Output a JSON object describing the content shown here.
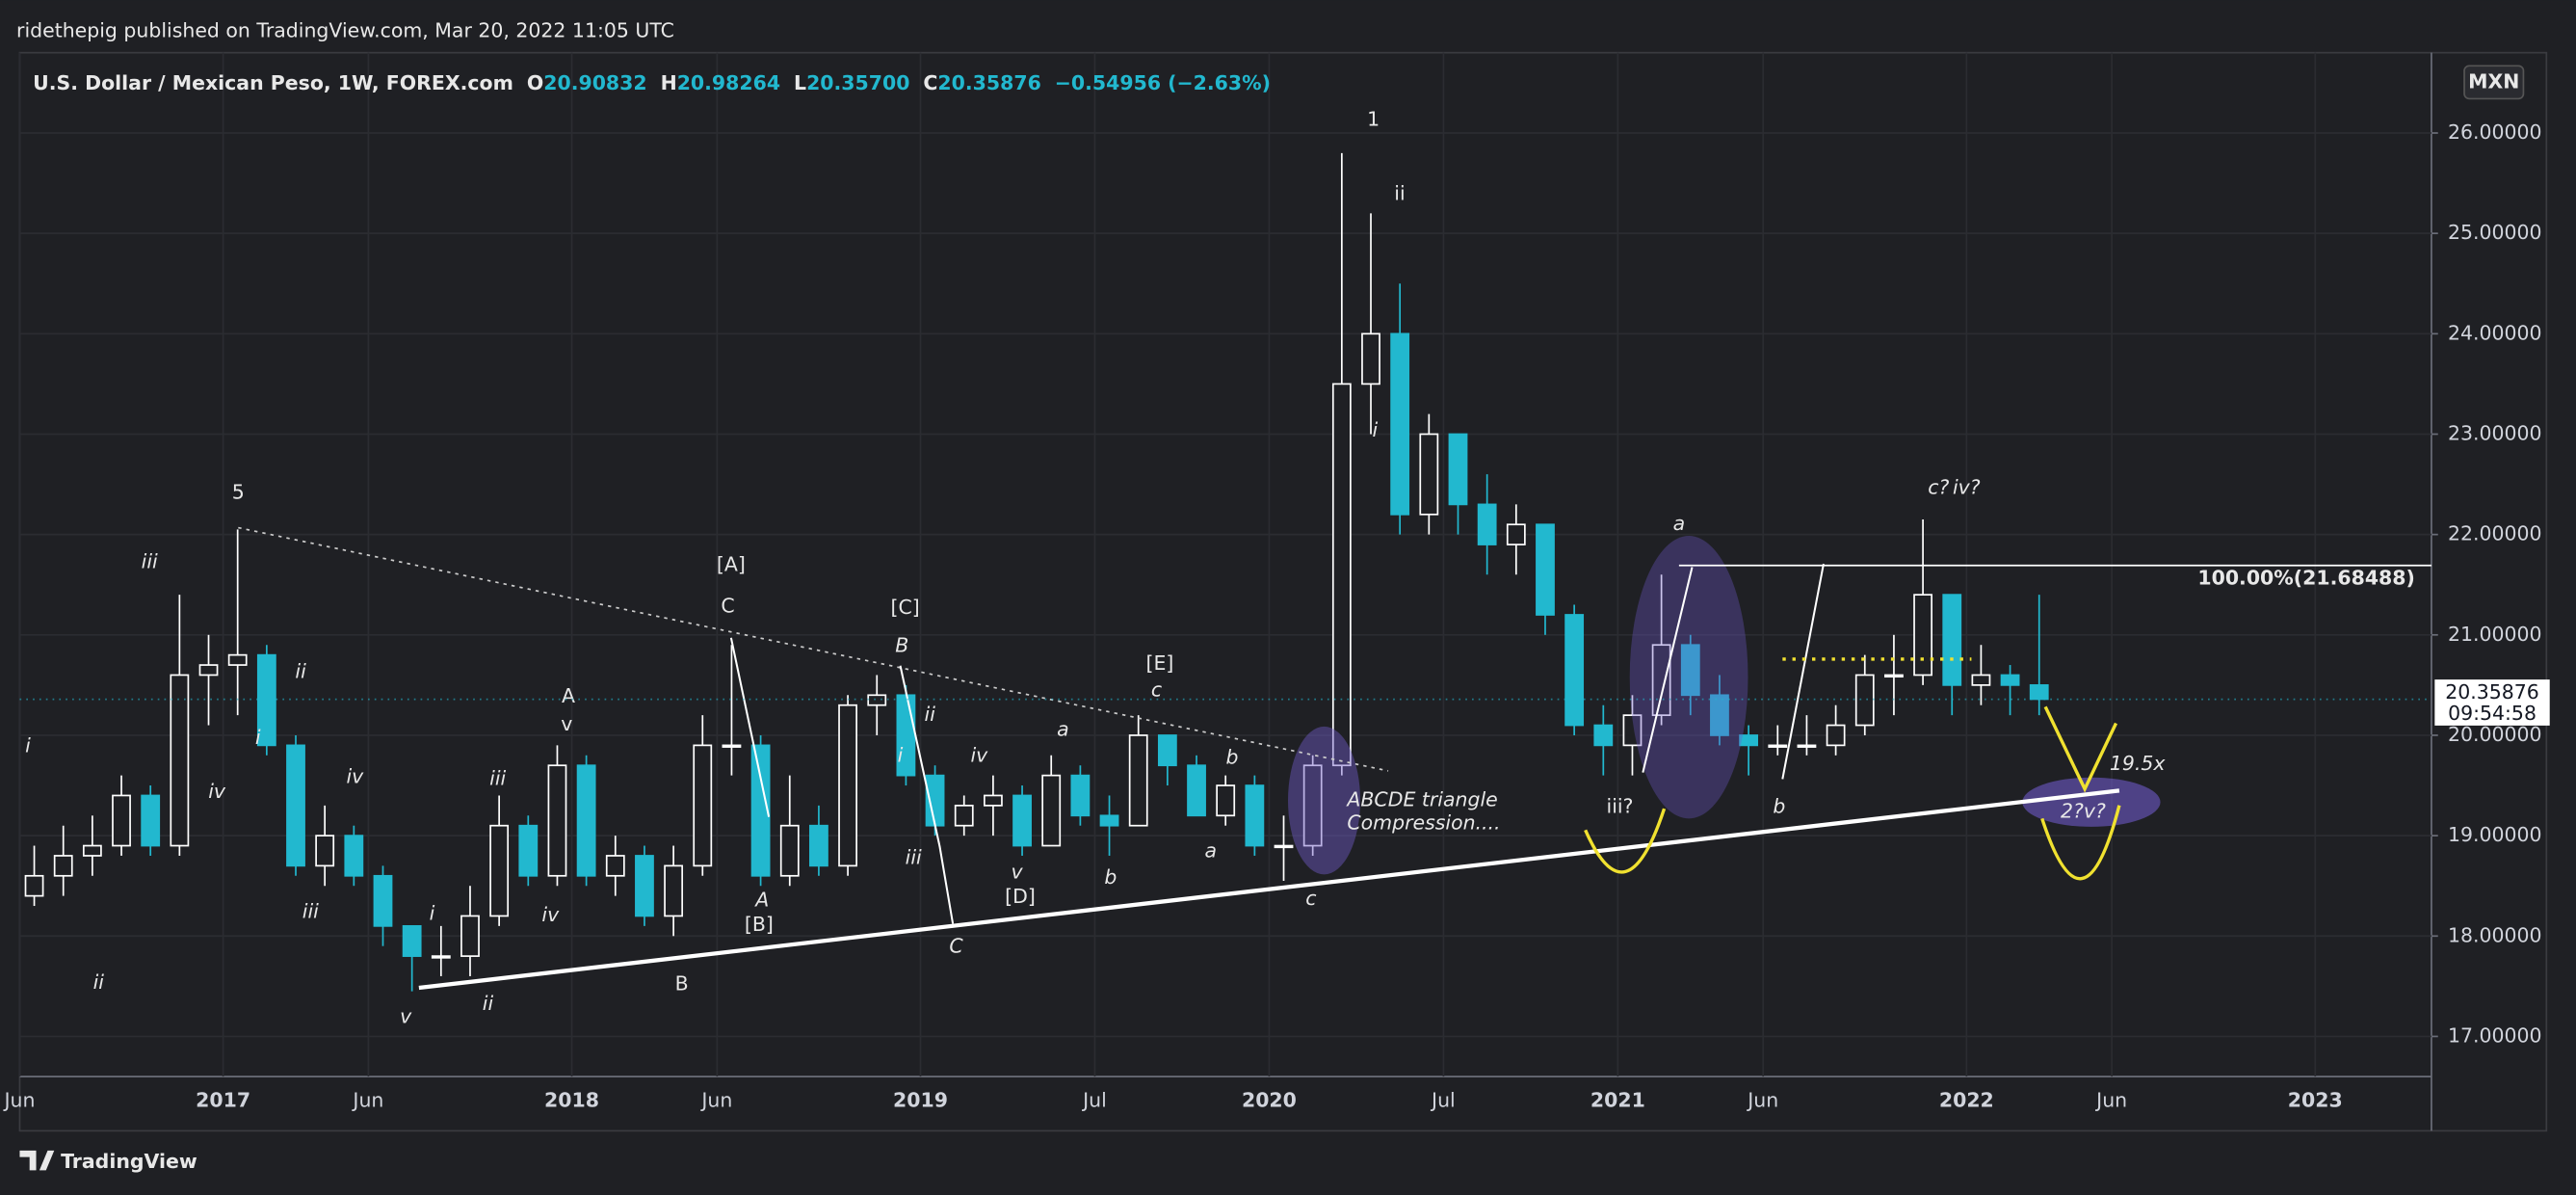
{
  "header": "ridethepig published on TradingView.com, Mar 20, 2022 11:05 UTC",
  "legend": {
    "symbol": "U.S. Dollar / Mexican Peso, 1W, FOREX.com",
    "o_label": "O",
    "o": "20.90832",
    "h_label": "H",
    "h": "20.98264",
    "l_label": "L",
    "l": "20.35700",
    "c_label": "C",
    "c": "20.35876",
    "change": "−0.54956 (−2.63%)"
  },
  "currency": "MXN",
  "footer": "TradingView",
  "chart_data": {
    "type": "candlestick",
    "up_color": "#ffffff",
    "down_color": "#22b8cf",
    "x": [
      "2016-06",
      "2016-07",
      "2016-08",
      "2016-09",
      "2016-10",
      "2016-11",
      "2016-12",
      "2017-01",
      "2017-02",
      "2017-03",
      "2017-04",
      "2017-05",
      "2017-06",
      "2017-07",
      "2017-08",
      "2017-09",
      "2017-10",
      "2017-11",
      "2017-12",
      "2018-01",
      "2018-02",
      "2018-03",
      "2018-04",
      "2018-05",
      "2018-06",
      "2018-07",
      "2018-08",
      "2018-09",
      "2018-10",
      "2018-11",
      "2018-12",
      "2019-01",
      "2019-02",
      "2019-03",
      "2019-04",
      "2019-05",
      "2019-06",
      "2019-07",
      "2019-08",
      "2019-09",
      "2019-10",
      "2019-11",
      "2019-12",
      "2020-01",
      "2020-02",
      "2020-03",
      "2020-04",
      "2020-05",
      "2020-06",
      "2020-07",
      "2020-08",
      "2020-09",
      "2020-10",
      "2020-11",
      "2020-12",
      "2021-01",
      "2021-02",
      "2021-03",
      "2021-04",
      "2021-05",
      "2021-06",
      "2021-07",
      "2021-08",
      "2021-09",
      "2021-10",
      "2021-11",
      "2021-12",
      "2022-01",
      "2022-02",
      "2022-03"
    ],
    "open": [
      18.4,
      18.6,
      18.8,
      18.9,
      19.4,
      18.9,
      20.6,
      20.7,
      20.8,
      19.9,
      18.7,
      19.0,
      18.6,
      18.1,
      17.8,
      17.8,
      18.2,
      19.1,
      18.6,
      19.7,
      18.6,
      18.8,
      18.2,
      18.7,
      19.9,
      19.9,
      18.6,
      19.1,
      18.7,
      20.3,
      20.4,
      19.6,
      19.1,
      19.3,
      19.4,
      18.9,
      19.6,
      19.2,
      19.1,
      20.0,
      19.7,
      19.2,
      19.5,
      18.9,
      18.9,
      19.7,
      23.5,
      24.0,
      22.2,
      23.0,
      22.3,
      21.9,
      22.1,
      21.2,
      20.1,
      19.9,
      20.2,
      20.9,
      20.4,
      20.0,
      19.9,
      19.9,
      19.9,
      20.1,
      20.6,
      20.6,
      21.4,
      20.5,
      20.6,
      20.5
    ],
    "high": [
      18.9,
      19.1,
      19.2,
      19.6,
      19.5,
      21.4,
      21.0,
      22.05,
      20.9,
      20.0,
      19.3,
      19.1,
      18.7,
      18.1,
      18.1,
      18.5,
      19.4,
      19.2,
      19.9,
      19.8,
      19.0,
      18.9,
      18.9,
      20.2,
      20.9,
      20.0,
      19.6,
      19.3,
      20.4,
      20.6,
      20.5,
      19.7,
      19.4,
      19.6,
      19.5,
      19.8,
      19.7,
      19.4,
      20.2,
      20.0,
      19.8,
      19.6,
      19.6,
      19.2,
      19.8,
      25.8,
      25.2,
      24.5,
      23.2,
      23.0,
      22.6,
      22.3,
      22.1,
      21.3,
      20.3,
      20.4,
      21.6,
      21.0,
      20.6,
      20.1,
      20.1,
      20.2,
      20.3,
      20.8,
      21.0,
      22.15,
      21.4,
      20.9,
      20.7,
      21.4
    ],
    "low": [
      18.3,
      18.4,
      18.6,
      18.8,
      18.8,
      18.8,
      20.1,
      20.2,
      19.8,
      18.6,
      18.5,
      18.5,
      17.9,
      17.45,
      17.6,
      17.6,
      18.1,
      18.5,
      18.5,
      18.5,
      18.4,
      18.1,
      18.0,
      18.6,
      19.6,
      18.5,
      18.5,
      18.6,
      18.6,
      20.0,
      19.5,
      19.0,
      19.0,
      19.0,
      18.8,
      18.9,
      19.1,
      18.8,
      19.1,
      19.5,
      19.2,
      19.1,
      18.8,
      18.55,
      18.8,
      19.6,
      23.0,
      22.0,
      22.0,
      22.0,
      21.6,
      21.6,
      21.0,
      20.0,
      19.6,
      19.6,
      20.1,
      20.2,
      19.9,
      19.6,
      19.8,
      19.8,
      19.8,
      20.0,
      20.2,
      20.5,
      20.2,
      20.3,
      20.2,
      20.2
    ],
    "close": [
      18.6,
      18.8,
      18.9,
      19.4,
      18.9,
      20.6,
      20.7,
      20.8,
      19.9,
      18.7,
      19.0,
      18.6,
      18.1,
      17.8,
      17.8,
      18.2,
      19.1,
      18.6,
      19.7,
      18.6,
      18.8,
      18.2,
      18.7,
      19.9,
      19.9,
      18.6,
      19.1,
      18.7,
      20.3,
      20.4,
      19.6,
      19.1,
      19.3,
      19.4,
      18.9,
      19.6,
      19.2,
      19.1,
      20.0,
      19.7,
      19.2,
      19.5,
      18.9,
      18.9,
      19.7,
      23.5,
      24.0,
      22.2,
      23.0,
      22.3,
      21.9,
      22.1,
      21.2,
      20.1,
      19.9,
      20.2,
      20.9,
      20.4,
      20.0,
      19.9,
      19.9,
      19.9,
      20.1,
      20.6,
      20.6,
      21.4,
      20.5,
      20.6,
      20.5,
      20.36
    ],
    "xlim": [
      "2016-06",
      "2023-05"
    ],
    "xticks": [
      {
        "value": "2016-06",
        "label": "Jun"
      },
      {
        "value": "2017-01",
        "label": "2017"
      },
      {
        "value": "2017-06",
        "label": "Jun"
      },
      {
        "value": "2018-01",
        "label": "2018"
      },
      {
        "value": "2018-06",
        "label": "Jun"
      },
      {
        "value": "2019-01",
        "label": "2019"
      },
      {
        "value": "2019-07",
        "label": "Jul"
      },
      {
        "value": "2020-01",
        "label": "2020"
      },
      {
        "value": "2020-07",
        "label": "Jul"
      },
      {
        "value": "2021-01",
        "label": "2021"
      },
      {
        "value": "2021-06",
        "label": "Jun"
      },
      {
        "value": "2022-01",
        "label": "2022"
      },
      {
        "value": "2022-06",
        "label": "Jun"
      },
      {
        "value": "2023-01",
        "label": "2023"
      }
    ],
    "ylim": [
      16.6,
      26.8
    ],
    "yticks": [
      {
        "value": 17,
        "label": "17.00000"
      },
      {
        "value": 18,
        "label": "18.00000"
      },
      {
        "value": 19,
        "label": "19.00000"
      },
      {
        "value": 20,
        "label": "20.00000"
      },
      {
        "value": 21,
        "label": "21.00000"
      },
      {
        "value": 22,
        "label": "22.00000"
      },
      {
        "value": 23,
        "label": "23.00000"
      },
      {
        "value": 24,
        "label": "24.00000"
      },
      {
        "value": 25,
        "label": "25.00000"
      },
      {
        "value": 26,
        "label": "26.00000"
      }
    ],
    "grid": true,
    "last_price": 20.35876,
    "last_price_label": "20.35876",
    "countdown": "09:54:58",
    "annotations": [
      "5",
      "iii",
      "ii",
      "i",
      "iv",
      "iv",
      "i",
      "ii",
      "iii",
      "i",
      "ii",
      "v",
      "iii",
      "iv",
      "A",
      "v",
      "B",
      "[A]",
      "C",
      "A",
      "[B]",
      "[C]",
      "B",
      "ii",
      "i",
      "iii",
      "C",
      "iv",
      "v",
      "[D]",
      "a",
      "a",
      "b",
      "[E]",
      "c",
      "b",
      "c",
      "ABCDE triangle",
      "Compression....",
      "1",
      "ii",
      "i",
      "a",
      "iii?",
      "b",
      "c?",
      "iv?",
      "19.5x",
      "2?v?",
      "100.00%(21.68488)"
    ]
  }
}
